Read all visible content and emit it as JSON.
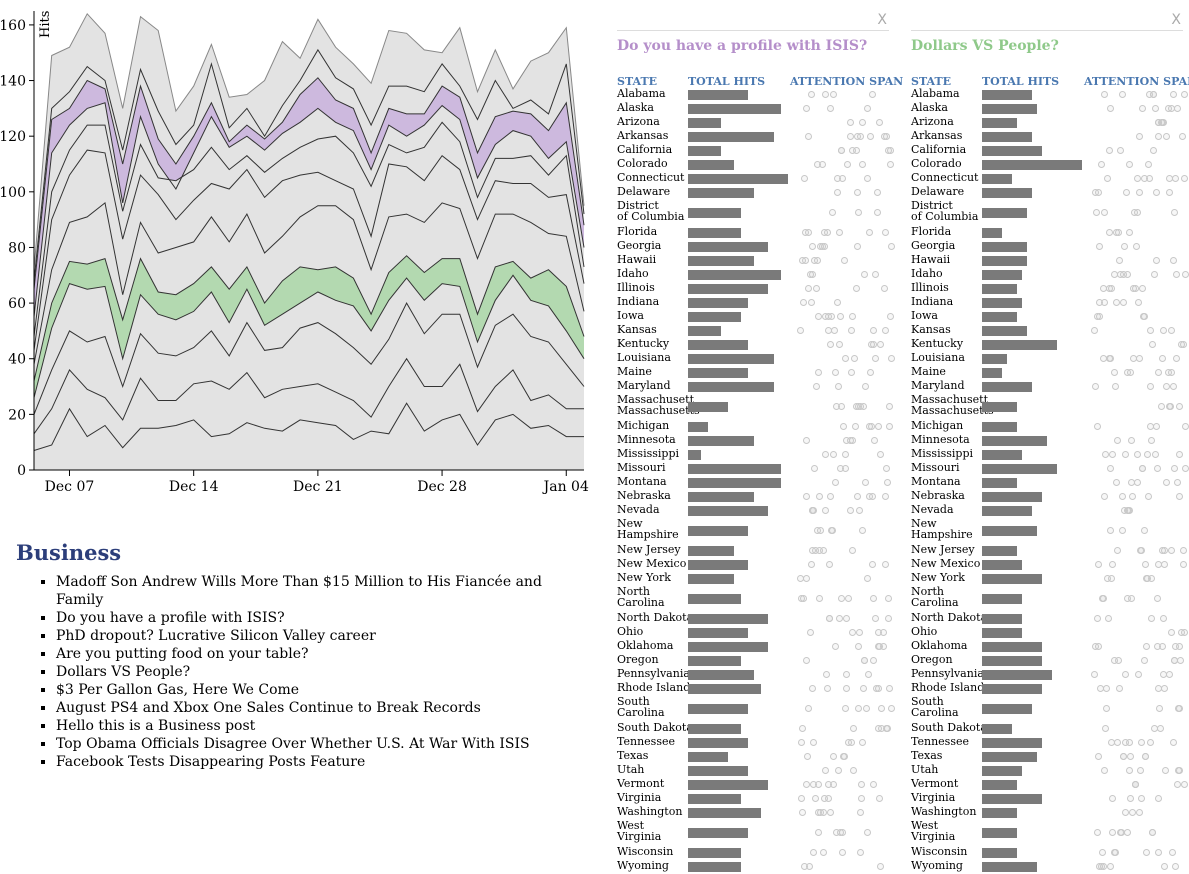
{
  "chart_data": {
    "type": "area",
    "ylabel": "Hits",
    "ylim": [
      0,
      165
    ],
    "yticks": [
      "0",
      "20",
      "40",
      "60",
      "80",
      "100",
      "120",
      "140",
      "160"
    ],
    "xtick_labels": [
      "Dec 07",
      "Dec 14",
      "Dec 21",
      "Dec 28",
      "Jan 04"
    ],
    "x_dates": [
      "2014-12-05",
      "2014-12-06",
      "2014-12-07",
      "2014-12-08",
      "2014-12-09",
      "2014-12-10",
      "2014-12-11",
      "2014-12-12",
      "2014-12-13",
      "2014-12-14",
      "2014-12-15",
      "2014-12-16",
      "2014-12-17",
      "2014-12-18",
      "2014-12-19",
      "2014-12-20",
      "2014-12-21",
      "2014-12-22",
      "2014-12-23",
      "2014-12-24",
      "2014-12-25",
      "2014-12-26",
      "2014-12-27",
      "2014-12-28",
      "2014-12-29",
      "2014-12-30",
      "2014-12-31",
      "2015-01-01",
      "2015-01-02",
      "2015-01-03",
      "2015-01-04",
      "2015-01-05"
    ],
    "highlight_colors": [
      "#cdb9de",
      "#b3d9b0"
    ],
    "base_color": "#e3e3e3",
    "cumulative_levels": [
      [
        7,
        9,
        22,
        12,
        16,
        8,
        15,
        15,
        16,
        18,
        12,
        13,
        17,
        15,
        14,
        18,
        17,
        16,
        11,
        14,
        13,
        24,
        14,
        18,
        20,
        9,
        18,
        20,
        15,
        16,
        12,
        12
      ],
      [
        13,
        22,
        36,
        29,
        26,
        18,
        33,
        25,
        25,
        31,
        32,
        29,
        35,
        26,
        29,
        30,
        31,
        28,
        25,
        19,
        30,
        40,
        30,
        30,
        38,
        21,
        30,
        36,
        25,
        27,
        22,
        22
      ],
      [
        20,
        36,
        50,
        46,
        48,
        30,
        49,
        42,
        41,
        44,
        50,
        41,
        53,
        43,
        44,
        51,
        53,
        49,
        44,
        38,
        47,
        60,
        49,
        56,
        56,
        37,
        52,
        56,
        48,
        46,
        38,
        30
      ],
      [
        26,
        51,
        67,
        65,
        66,
        40,
        63,
        56,
        54,
        57,
        64,
        53,
        65,
        52,
        56,
        60,
        64,
        61,
        59,
        50,
        61,
        69,
        61,
        67,
        66,
        46,
        61,
        70,
        61,
        59,
        50,
        40
      ],
      [
        32,
        60,
        75,
        74,
        76,
        54,
        76,
        64,
        63,
        67,
        73,
        65,
        73,
        60,
        68,
        73,
        72,
        73,
        69,
        56,
        71,
        77,
        71,
        76,
        76,
        56,
        73,
        75,
        69,
        72,
        66,
        48
      ],
      [
        38,
        72,
        89,
        91,
        96,
        63,
        89,
        78,
        80,
        82,
        91,
        82,
        92,
        78,
        84,
        91,
        95,
        95,
        90,
        72,
        91,
        92,
        89,
        96,
        94,
        76,
        92,
        92,
        89,
        85,
        84,
        57
      ],
      [
        43,
        90,
        106,
        115,
        114,
        83,
        106,
        99,
        90,
        97,
        103,
        101,
        108,
        98,
        104,
        106,
        107,
        104,
        101,
        84,
        110,
        109,
        104,
        113,
        108,
        90,
        104,
        103,
        103,
        98,
        99,
        67
      ],
      [
        48,
        100,
        115,
        124,
        124,
        93,
        117,
        105,
        104,
        108,
        116,
        108,
        113,
        107,
        112,
        116,
        119,
        120,
        114,
        102,
        117,
        114,
        116,
        125,
        118,
        98,
        112,
        112,
        113,
        106,
        113,
        73
      ],
      [
        55,
        114,
        124,
        130,
        132,
        96,
        127,
        110,
        101,
        114,
        127,
        116,
        120,
        115,
        121,
        125,
        130,
        125,
        122,
        108,
        124,
        120,
        124,
        131,
        126,
        105,
        117,
        122,
        120,
        112,
        118,
        80
      ],
      [
        65,
        126,
        130,
        140,
        137,
        110,
        138,
        119,
        110,
        120,
        132,
        118,
        124,
        119,
        125,
        135,
        141,
        133,
        130,
        114,
        130,
        128,
        128,
        138,
        134,
        114,
        127,
        129,
        128,
        122,
        132,
        88
      ],
      [
        68,
        130,
        136,
        145,
        140,
        115,
        144,
        129,
        117,
        124,
        146,
        123,
        130,
        120,
        131,
        140,
        151,
        141,
        137,
        124,
        138,
        138,
        136,
        146,
        138,
        126,
        140,
        130,
        133,
        128,
        146,
        92
      ],
      [
        72,
        149,
        152,
        164,
        157,
        130,
        163,
        158,
        129,
        138,
        153,
        134,
        135,
        140,
        154,
        148,
        162,
        152,
        146,
        139,
        158,
        157,
        151,
        150,
        159,
        136,
        151,
        137,
        147,
        150,
        159,
        95
      ]
    ]
  },
  "business": {
    "heading": "Business",
    "items": [
      "Madoff Son Andrew Wills More Than $15 Million to His Fiancée and Family",
      "Do you have a profile with ISIS?",
      "PhD dropout? Lucrative Silicon Valley career",
      "Are you putting food on your table?",
      "Dollars VS People?",
      "$3 Per Gallon Gas, Here We Come",
      "August PS4 and Xbox One Sales Continue to Break Records",
      "Hello this is a Business post",
      "Top Obama Officials Disagree Over Whether U.S. At War With ISIS",
      "Facebook Tests Disappearing Posts Feature"
    ]
  },
  "panels": [
    {
      "title": "Do you have a profile with ISIS?",
      "title_color": "#b58fca",
      "close": "X",
      "col_state": "STATE",
      "col_hits": "TOTAL HITS",
      "col_attention": "ATTENTION SPAN",
      "bar_color": "#7a7a7a",
      "max_hits": 100,
      "hits": [
        60,
        93,
        33,
        86,
        33,
        46,
        100,
        66,
        53,
        53,
        80,
        66,
        93,
        80,
        60,
        53,
        33,
        60,
        86,
        60,
        86,
        40,
        20,
        66,
        13,
        93,
        93,
        66,
        80,
        60,
        46,
        60,
        46,
        53,
        80,
        60,
        80,
        53,
        66,
        73,
        60,
        53,
        60,
        40,
        60,
        80,
        53,
        73,
        60,
        53,
        53
      ]
    },
    {
      "title": "Dollars VS People?",
      "title_color": "#8fc98a",
      "close": "X",
      "col_state": "STATE",
      "col_hits": "TOTAL HITS",
      "col_attention": "ATTENTION SPAN",
      "bar_color": "#7a7a7a",
      "max_hits": 100,
      "hits": [
        50,
        55,
        35,
        50,
        60,
        100,
        30,
        50,
        45,
        20,
        45,
        45,
        40,
        35,
        40,
        35,
        45,
        75,
        25,
        20,
        50,
        35,
        35,
        65,
        40,
        75,
        35,
        60,
        50,
        55,
        35,
        40,
        60,
        40,
        40,
        40,
        60,
        60,
        70,
        60,
        50,
        30,
        60,
        55,
        40,
        35,
        60,
        35,
        35,
        35,
        55
      ]
    }
  ],
  "states": [
    "Alabama",
    "Alaska",
    "Arizona",
    "Arkansas",
    "California",
    "Colorado",
    "Connecticut",
    "Delaware",
    "District of Columbia",
    "Florida",
    "Georgia",
    "Hawaii",
    "Idaho",
    "Illinois",
    "Indiana",
    "Iowa",
    "Kansas",
    "Kentucky",
    "Louisiana",
    "Maine",
    "Maryland",
    "Massachusetts",
    "Michigan",
    "Minnesota",
    "Mississippi",
    "Missouri",
    "Montana",
    "Nebraska",
    "Nevada",
    "New Hampshire",
    "New Jersey",
    "New Mexico",
    "New York",
    "North Carolina",
    "North Dakota",
    "Ohio",
    "Oklahoma",
    "Oregon",
    "Pennsylvania",
    "Rhode Island",
    "South Carolina",
    "South Dakota",
    "Tennessee",
    "Texas",
    "Utah",
    "Vermont",
    "Virginia",
    "Washington",
    "West Virginia",
    "Wisconsin",
    "Wyoming"
  ]
}
